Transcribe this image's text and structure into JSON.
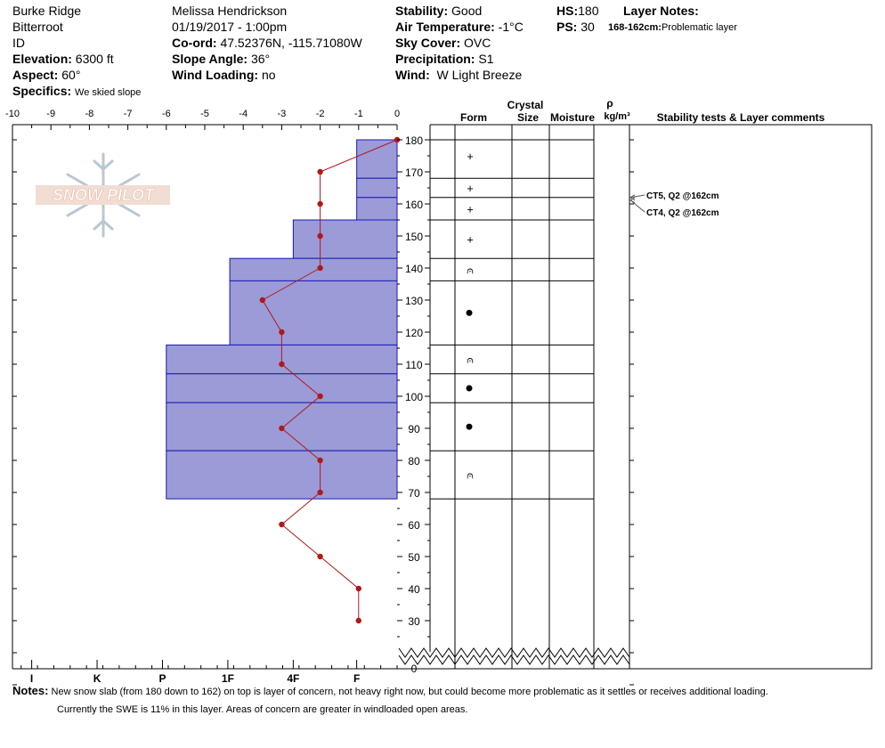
{
  "site": {
    "location": "Burke Ridge",
    "range": "Bitterroot",
    "state": "ID",
    "elevation_label": "Elevation:",
    "elevation": "6300 ft",
    "aspect_label": "Aspect:",
    "aspect": "60°",
    "specifics_label": "Specifics:",
    "specifics": "We skied slope"
  },
  "observer": {
    "name": "Melissa Hendrickson",
    "datetime": "01/19/2017 - 1:00pm",
    "coord_label": "Co-ord:",
    "coord": "47.52376N, -115.71080W",
    "slope_label": "Slope Angle:",
    "slope": "36°",
    "wind_loading_label": "Wind Loading:",
    "wind_loading": "no"
  },
  "conditions": {
    "stability_label": "Stability:",
    "stability": "Good",
    "air_temp_label": "Air Temperature:",
    "air_temp": "-1°C",
    "sky_label": "Sky Cover:",
    "sky": "OVC",
    "precip_label": "Precipitation:",
    "precip": "S1",
    "wind_label": "Wind:",
    "wind": "W Light Breeze"
  },
  "snowpack": {
    "hs_label": "HS:",
    "hs": "180",
    "ps_label": "PS:",
    "ps": "30",
    "layer_notes_label": "Layer Notes:",
    "layer_note_range": "168-162cm:",
    "layer_note_text": "Problematic layer"
  },
  "logo_text": "SNOW PILOT",
  "columns": {
    "crystal": "Crystal",
    "form": "Form",
    "size": "Size",
    "moisture": "Moisture",
    "rho": "ρ",
    "density_unit": "kg/m³",
    "stability": "Stability tests & Layer comments"
  },
  "notes": {
    "label": "Notes:",
    "line1": "New snow slab (from 180 down to 162) on top is layer of concern, not heavy right now, but could become more problematic as it settles or receives additional loading.",
    "line2": "Currently the SWE is 11% in this layer.   Areas of concern are greater in windloaded open areas."
  },
  "chart_data": {
    "type": "snow-profile",
    "temperature_axis": {
      "ticks": [
        "-10",
        "-9",
        "-8",
        "-7",
        "-6",
        "-5",
        "-4",
        "-3",
        "-2",
        "-1",
        "0"
      ],
      "range": [
        -10,
        0
      ]
    },
    "hardness_axis": {
      "ticks": [
        "I",
        "K",
        "P",
        "1F",
        "4F",
        "F"
      ],
      "tick_values": [
        9.5,
        7.8,
        6.1,
        4.4,
        2.7,
        1.05
      ]
    },
    "depth_axis": {
      "ticks": [
        "180",
        "170",
        "160",
        "150",
        "140",
        "130",
        "120",
        "110",
        "100",
        "90",
        "80",
        "70",
        "60",
        "50",
        "40",
        "30",
        "0"
      ],
      "range": [
        0,
        180
      ]
    },
    "hardness_layers": [
      {
        "top": 180,
        "bottom": 168,
        "hardness": 1.05
      },
      {
        "top": 168,
        "bottom": 162,
        "hardness": 1.05
      },
      {
        "top": 162,
        "bottom": 155,
        "hardness": 1.05
      },
      {
        "top": 155,
        "bottom": 143,
        "hardness": 2.7
      },
      {
        "top": 143,
        "bottom": 136,
        "hardness": 4.35
      },
      {
        "top": 136,
        "bottom": 116,
        "hardness": 4.35
      },
      {
        "top": 116,
        "bottom": 107,
        "hardness": 6.0
      },
      {
        "top": 107,
        "bottom": 98,
        "hardness": 6.0
      },
      {
        "top": 98,
        "bottom": 83,
        "hardness": 6.0
      },
      {
        "top": 83,
        "bottom": 68,
        "hardness": 6.0
      }
    ],
    "temperature_profile": [
      {
        "depth": 180,
        "temp": 0
      },
      {
        "depth": 170,
        "temp": -2
      },
      {
        "depth": 160,
        "temp": -2
      },
      {
        "depth": 150,
        "temp": -2
      },
      {
        "depth": 140,
        "temp": -2
      },
      {
        "depth": 130,
        "temp": -3.5
      },
      {
        "depth": 120,
        "temp": -3
      },
      {
        "depth": 110,
        "temp": -3
      },
      {
        "depth": 100,
        "temp": -2
      },
      {
        "depth": 90,
        "temp": -3
      },
      {
        "depth": 80,
        "temp": -2
      },
      {
        "depth": 70,
        "temp": -2
      },
      {
        "depth": 60,
        "temp": -3
      },
      {
        "depth": 50,
        "temp": -2
      },
      {
        "depth": 40,
        "temp": -1
      },
      {
        "depth": 30,
        "temp": -1
      }
    ],
    "grain_forms": [
      {
        "depth": 175,
        "symbol": "+"
      },
      {
        "depth": 165,
        "symbol": "+"
      },
      {
        "depth": 158.5,
        "symbol": "+"
      },
      {
        "depth": 149,
        "symbol": "+"
      },
      {
        "depth": 139.5,
        "symbol": "⩀"
      },
      {
        "depth": 126,
        "symbol": "●"
      },
      {
        "depth": 111.5,
        "symbol": "⩀"
      },
      {
        "depth": 102.5,
        "symbol": "●"
      },
      {
        "depth": 90.5,
        "symbol": "●"
      },
      {
        "depth": 75.5,
        "symbol": "⩀"
      }
    ],
    "stability_tests": [
      {
        "text": "CT5, Q2 @162cm",
        "depth": 162
      },
      {
        "text": "CT4, Q2 @162cm",
        "depth": 162
      }
    ]
  }
}
